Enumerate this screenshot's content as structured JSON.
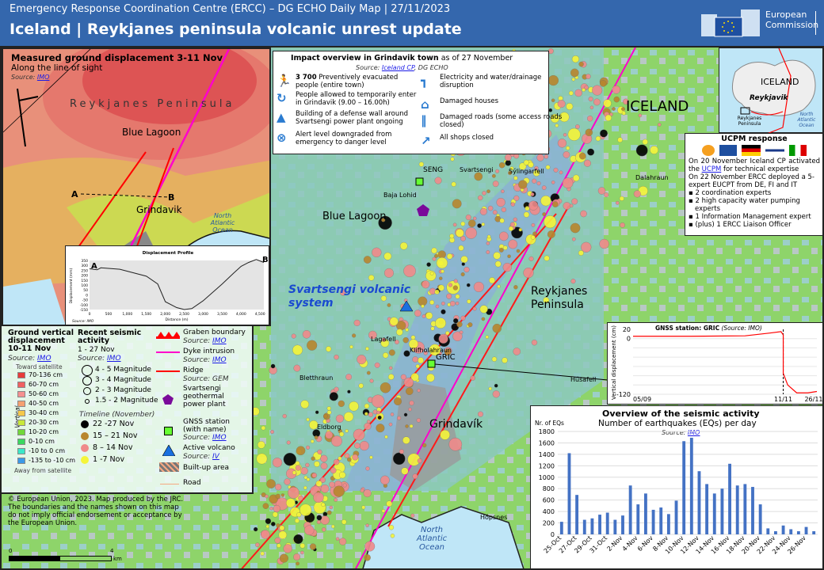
{
  "header": {
    "subtitle": "Emergency Response Coordination Centre (ERCC) – DG ECHO Daily Map | 27/11/2023",
    "title": "Iceland | Reykjanes peninsula volcanic unrest update",
    "logo_text_1": "European",
    "logo_text_2": "Commission"
  },
  "colors": {
    "header": "#3467ad",
    "dyke": "#ff00cc",
    "graben": "#ff1a1a",
    "eq_22_27": "#000000",
    "eq_15_21": "#b8862e",
    "eq_8_14": "#f08a8a",
    "eq_1_7": "#f5f53a",
    "gnss": "#66ff33",
    "volcano": "#1a6fe0",
    "power_plant": "#7a0a9a"
  },
  "inset_left": {
    "title": "Measured ground displacement 3-11 Nov",
    "subtitle": "Along the line of sight",
    "source_label": "Source:",
    "source": "IMO",
    "region": "Reykjanes Peninsula",
    "blue_lagoon": "Blue Lagoon",
    "grindavik": "Grindavik",
    "ocean": "North Atlantic Ocean",
    "a": "A",
    "b": "B",
    "profile": {
      "title": "Displacement Profile",
      "ylabel": "Displacement (mm)",
      "xlabel": "Distance (m)",
      "source": "Source: IMO",
      "yticks": [
        "350",
        "300",
        "250",
        "200",
        "150",
        "100",
        "50",
        "0",
        "-50",
        "-100",
        "-150"
      ],
      "xticks": [
        "0",
        "500",
        "1,000",
        "1,500",
        "2,000",
        "2,500",
        "3,000",
        "3,500",
        "4,000",
        "4,500"
      ],
      "points": [
        [
          0,
          265
        ],
        [
          200,
          255
        ],
        [
          300,
          275
        ],
        [
          800,
          260
        ],
        [
          1000,
          240
        ],
        [
          1500,
          190
        ],
        [
          1800,
          110
        ],
        [
          2000,
          -70
        ],
        [
          2300,
          -130
        ],
        [
          2500,
          -150
        ],
        [
          2700,
          -140
        ],
        [
          3000,
          -60
        ],
        [
          3500,
          110
        ],
        [
          3800,
          220
        ],
        [
          4000,
          290
        ],
        [
          4200,
          330
        ],
        [
          4400,
          360
        ],
        [
          4600,
          330
        ]
      ]
    }
  },
  "legend": {
    "disp": {
      "title": "Ground vertical displacement 10-11 Nov",
      "source_label": "Source:",
      "source": "IMO",
      "toward": "Toward satellite",
      "away": "Away from satellite",
      "axis": "Vertical",
      "classes": [
        {
          "label": "70-136 cm",
          "color": "#e83a3a"
        },
        {
          "label": "60-70 cm",
          "color": "#f06060"
        },
        {
          "label": "50-60 cm",
          "color": "#f59090"
        },
        {
          "label": "40-50 cm",
          "color": "#f5a070"
        },
        {
          "label": "30-40 cm",
          "color": "#f5c84a"
        },
        {
          "label": "20-30 cm",
          "color": "#c8e83a"
        },
        {
          "label": "10-20 cm",
          "color": "#70d83a"
        },
        {
          "label": "0-10 cm",
          "color": "#3ad860"
        },
        {
          "label": "-10 to 0 cm",
          "color": "#3ae8c8"
        },
        {
          "label": "-135 to -10 cm",
          "color": "#3a9ae8"
        }
      ]
    },
    "seismic": {
      "title": "Recent seismic activity",
      "period": "1 - 27 Nov",
      "source_label": "Source:",
      "source": "IMO",
      "magnitudes": [
        "4 - 5 Magnitude",
        "3 - 4 Magnitude",
        "2 - 3 Magnitude",
        "1.5 - 2 Magnitude"
      ],
      "timeline_title": "Timeline (November)",
      "timeline": [
        {
          "label": "22 -27 Nov",
          "color": "#000000"
        },
        {
          "label": "15 – 21 Nov",
          "color": "#b8862e"
        },
        {
          "label": "8 – 14 Nov",
          "color": "#f08a8a"
        },
        {
          "label": "1 -7 Nov",
          "color": "#f5f53a"
        }
      ]
    },
    "symbols": {
      "graben": "Graben boundary",
      "graben_src": "IMO",
      "dyke": "Dyke intrusion",
      "dyke_src": "IMO",
      "ridge": "Ridge",
      "ridge_src": "GEM",
      "plant": "Svartsengi geothermal power plant",
      "gnss": "GNSS station (with name)",
      "gnss_src": "IMO",
      "volcano": "Active volcano",
      "volcano_src": "IV",
      "builtup": "Built-up area",
      "road": "Road",
      "source_label": "Source:"
    }
  },
  "impact": {
    "title": "Impact overview in Grindavik  town",
    "date": "as of 27 November",
    "source_label": "Source:",
    "source_link": "Iceland CP",
    "source_rest": ", DG ECHO",
    "items": [
      {
        "icon": "evacuation-icon",
        "bold": "3 700",
        "text": "Preventively evacuated people (entire town)"
      },
      {
        "icon": "re-entry-icon",
        "text": "People allowed to temporarily enter in Grindavik (9.00 – 16.00h)"
      },
      {
        "icon": "construction-icon",
        "text": "Building of a defense wall around Svartsengi power plant ongoing"
      },
      {
        "icon": "alert-icon",
        "text": "Alert level downgraded from emergency to danger level"
      },
      {
        "icon": "water-tap-icon",
        "text": "Electricity and water/drainage disruption"
      },
      {
        "icon": "house-icon",
        "text": "Damaged houses"
      },
      {
        "icon": "road-icon",
        "text": "Damaged roads (some access roads closed)"
      },
      {
        "icon": "shop-icon",
        "text": "All shops closed"
      }
    ]
  },
  "iceland_inset": {
    "country": "ICELAND",
    "capital": "Reykjavik",
    "area": "Reykjanes Peninsula",
    "ocean": "North Atlantic Ocean"
  },
  "ucpm": {
    "title": "UCPM response",
    "p1a": "On 20 November Iceland CP activated the ",
    "p1link": "UCPM",
    "p1b": " for technical expertise",
    "p2": "On 22 November ERCC deployed a 5-expert EUCPT from DE, FI and IT",
    "bullets": [
      "2 coordination experts",
      "2 high capacity water pumping experts",
      "1 Information Management expert",
      "(plus) 1 ERCC Liaison Officer"
    ]
  },
  "map_labels": {
    "iceland": "ICELAND",
    "blue_lagoon": "Blue Lagoon",
    "system": "Svartsengi volcanic system",
    "peninsula": "Reykjanes Peninsula",
    "grindavik": "Grindavík",
    "seng": "SENG",
    "gric": "GRIC",
    "svartsengi": "Svartsengi",
    "sylingarfell": "Sýlingarfell",
    "baja": "Baja Lohid",
    "lagafell": "Lagafell",
    "bletthraun": "Bletthraun",
    "eldborg": "Eldborg",
    "hopsnes": "Hópsnes",
    "husafell": "Húsafell",
    "dalahraun": "Dalahraun",
    "klifholahraun": "Klifholahraun",
    "ocean": "North Atlantic Ocean"
  },
  "gnss_chart": {
    "title": "GNSS station: GRIC",
    "source": "(Source: IMO)",
    "ylabel": "Vertical displacement (cm)",
    "yticks": [
      "20",
      "0",
      "-120"
    ],
    "xticks": [
      "05/09",
      "11/11",
      "26/11"
    ],
    "ylim": [
      -120,
      20
    ],
    "points": [
      [
        "2023-09-05",
        5
      ],
      [
        "2023-10-01",
        5
      ],
      [
        "2023-10-25",
        6
      ],
      [
        "2023-11-05",
        12
      ],
      [
        "2023-11-10",
        15
      ],
      [
        "2023-11-11",
        8
      ],
      [
        "2023-11-11",
        -75
      ],
      [
        "2023-11-13",
        -100
      ],
      [
        "2023-11-17",
        -117
      ],
      [
        "2023-11-22",
        -117
      ],
      [
        "2023-11-26",
        -114
      ]
    ]
  },
  "chart_data": {
    "type": "bar",
    "title": "Overview of the seismic activity",
    "subtitle": "Number of earthquakes (EQs) per day",
    "source_label": "Source:",
    "source": "IMO",
    "ylabel": "Nr. of EQs",
    "ylim": [
      0,
      1800
    ],
    "yticks": [
      0,
      200,
      400,
      600,
      800,
      1000,
      1200,
      1400,
      1600,
      1800
    ],
    "grid": true,
    "categories": [
      "25-Oct",
      "26-Oct",
      "27-Oct",
      "28-Oct",
      "29-Oct",
      "30-Oct",
      "31-Oct",
      "1-Nov",
      "2-Nov",
      "3-Nov",
      "4-Nov",
      "5-Nov",
      "6-Nov",
      "7-Nov",
      "8-Nov",
      "9-Nov",
      "10-Nov",
      "11-Nov",
      "12-Nov",
      "13-Nov",
      "14-Nov",
      "15-Nov",
      "16-Nov",
      "17-Nov",
      "18-Nov",
      "19-Nov",
      "20-Nov",
      "21-Nov",
      "22-Nov",
      "23-Nov",
      "24-Nov",
      "25-Nov",
      "26-Nov",
      "27-Nov"
    ],
    "values": [
      220,
      1420,
      690,
      255,
      280,
      345,
      380,
      255,
      330,
      855,
      525,
      715,
      430,
      470,
      355,
      590,
      1630,
      1690,
      1105,
      880,
      715,
      800,
      1235,
      855,
      880,
      830,
      525,
      105,
      55,
      155,
      90,
      55,
      130,
      55
    ]
  },
  "footer": {
    "copyright": "© European Union, 2023. Map produced by the JRC. The boundaries and the names shown on this map do not imply official endorsement or acceptance by the European Union.",
    "scale_0": "0",
    "scale_4": "4",
    "scale_unit": "km"
  }
}
